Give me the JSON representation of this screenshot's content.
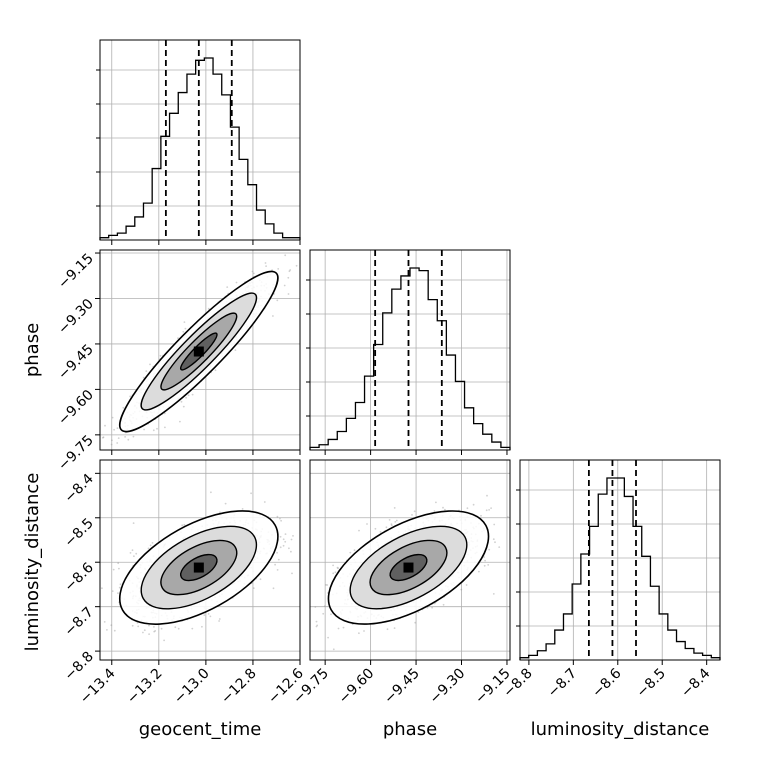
{
  "chart_data": {
    "type": "corner",
    "parameters": [
      "geocent_time",
      "phase",
      "luminosity_distance"
    ],
    "axis_labels": [
      "geocent_time",
      "phase",
      "luminosity_distance"
    ],
    "ranges": [
      [
        -13.45,
        -12.6
      ],
      [
        -9.8,
        -9.14
      ],
      [
        -8.82,
        -8.37
      ]
    ],
    "ticks": [
      [
        "−13.4",
        "−13.2",
        "−13.0",
        "−12.8",
        "−12.6"
      ],
      [
        "−9.75",
        "−9.60",
        "−9.45",
        "−9.30",
        "−9.15"
      ],
      [
        "−8.8",
        "−8.7",
        "−8.6",
        "−8.5",
        "−8.4"
      ]
    ],
    "tick_values": [
      [
        -13.4,
        -13.2,
        -13.0,
        -12.8,
        -12.6
      ],
      [
        -9.75,
        -9.6,
        -9.45,
        -9.3,
        -9.15
      ],
      [
        -8.8,
        -8.7,
        -8.6,
        -8.5,
        -8.4
      ]
    ],
    "quantiles": [
      [
        -13.17,
        -13.03,
        -12.89
      ],
      [
        -9.585,
        -9.475,
        -9.365
      ],
      [
        -8.665,
        -8.612,
        -8.559
      ]
    ],
    "histograms": [
      [
        1,
        2,
        3,
        6,
        10,
        16,
        31,
        45,
        55,
        64,
        72,
        78,
        79,
        72,
        63,
        49,
        35,
        24,
        13,
        7,
        3,
        1,
        1
      ],
      [
        1,
        2,
        4,
        7,
        12,
        18,
        28,
        40,
        52,
        61,
        66,
        69,
        68,
        57,
        49,
        36,
        26,
        16,
        10,
        6,
        3,
        1
      ],
      [
        1,
        2,
        4,
        7,
        13,
        20,
        33,
        46,
        58,
        72,
        79,
        79,
        71,
        58,
        45,
        32,
        20,
        13,
        8,
        5,
        3,
        2,
        1
      ]
    ],
    "correlations": {
      "phase_vs_geocent_time": 0.92,
      "luminosity_distance_vs_geocent_time": 0.55,
      "luminosity_distance_vs_phase": 0.55
    },
    "grid": true
  }
}
